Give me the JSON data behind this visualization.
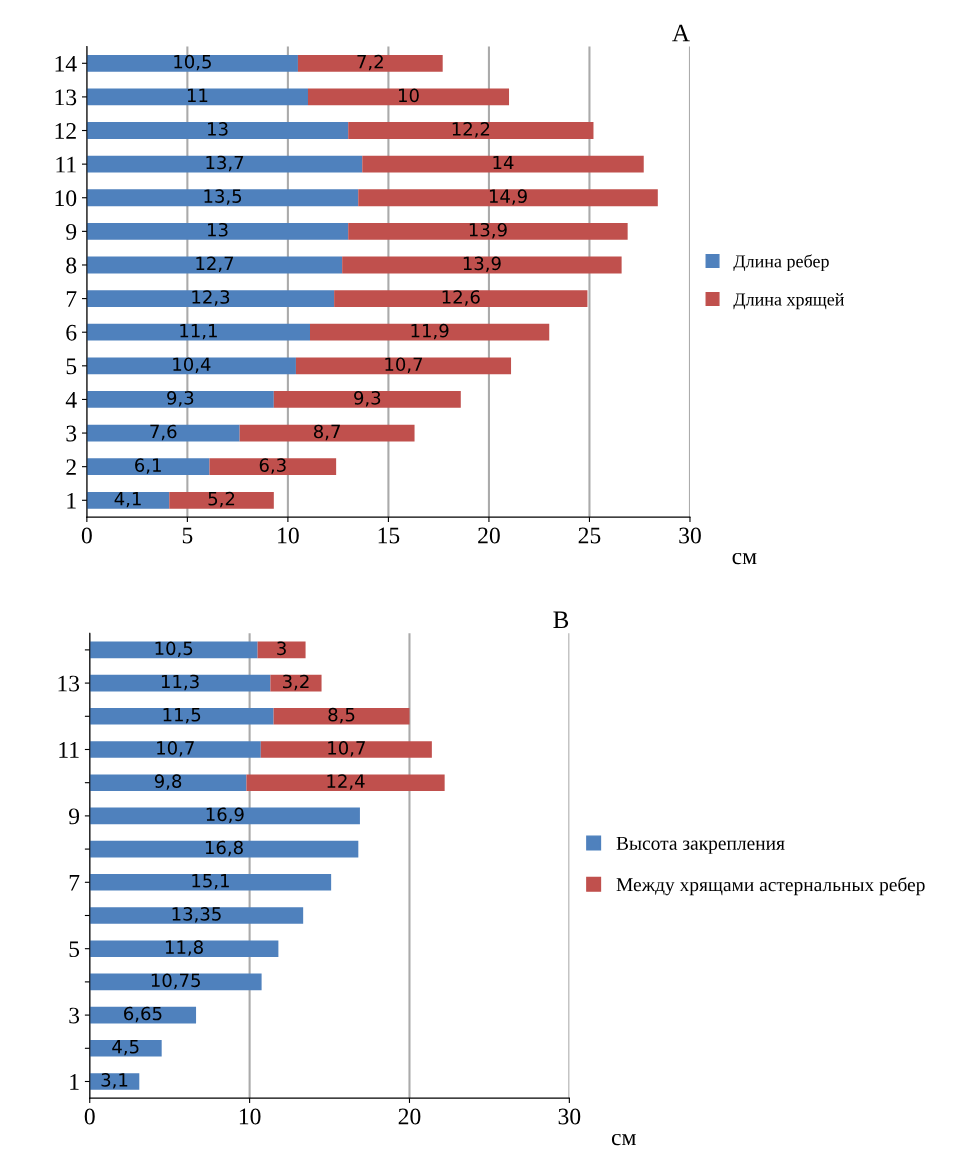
{
  "chart_data": [
    {
      "type": "bar",
      "orientation": "horizontal",
      "stacked": true,
      "title": "A",
      "xlabel": "см",
      "categories": [
        "14",
        "13",
        "12",
        "11",
        "10",
        "9",
        "8",
        "7",
        "6",
        "5",
        "4",
        "3",
        "2",
        "1"
      ],
      "series": [
        {
          "name": "Длина ребер",
          "color": "#4f81bd",
          "values": [
            10.5,
            11,
            13,
            13.7,
            13.5,
            13,
            12.7,
            12.3,
            11.1,
            10.4,
            9.3,
            7.6,
            6.1,
            4.1
          ],
          "value_labels": [
            "10,5",
            "11",
            "13",
            "13,7",
            "13,5",
            "13",
            "12,7",
            "12,3",
            "11,1",
            "10,4",
            "9,3",
            "7,6",
            "6,1",
            "4,1"
          ]
        },
        {
          "name": "Длина хрящей",
          "color": "#c0504d",
          "values": [
            7.2,
            10,
            12.2,
            14,
            14.9,
            13.9,
            13.9,
            12.6,
            11.9,
            10.7,
            9.3,
            8.7,
            6.3,
            5.2
          ],
          "value_labels": [
            "7,2",
            "10",
            "12,2",
            "14",
            "14,9",
            "13,9",
            "13,9",
            "12,6",
            "11,9",
            "10,7",
            "9,3",
            "8,7",
            "6,3",
            "5,2"
          ]
        }
      ],
      "xlim": [
        0,
        30
      ],
      "xticks": [
        0,
        5,
        10,
        15,
        20,
        25,
        30
      ],
      "grid": "x",
      "legend": "right"
    },
    {
      "type": "bar",
      "orientation": "horizontal",
      "stacked": true,
      "title": "B",
      "xlabel": "см",
      "categories": [
        null,
        "13",
        null,
        "11",
        null,
        "9",
        null,
        "7",
        null,
        "5",
        null,
        "3",
        null,
        "1"
      ],
      "series": [
        {
          "name": "Высота закрепления",
          "color": "#4f81bd",
          "values": [
            10.5,
            11.3,
            11.5,
            10.7,
            9.8,
            16.9,
            16.8,
            15.1,
            13.35,
            11.8,
            10.75,
            6.65,
            4.5,
            3.1
          ],
          "value_labels": [
            "10,5",
            "11,3",
            "11,5",
            "10,7",
            "9,8",
            "16,9",
            "16,8",
            "15,1",
            "13,35",
            "11,8",
            "10,75",
            "6,65",
            "4,5",
            "3,1"
          ]
        },
        {
          "name": "Между хрящами астернальных ребер",
          "color": "#c0504d",
          "values": [
            3,
            3.2,
            8.5,
            10.7,
            12.4,
            null,
            null,
            null,
            null,
            null,
            null,
            null,
            null,
            null
          ],
          "value_labels": [
            "3",
            "3,2",
            "8,5",
            "10,7",
            "12,4",
            null,
            null,
            null,
            null,
            null,
            null,
            null,
            null,
            null
          ]
        }
      ],
      "xlim": [
        0,
        30
      ],
      "xticks": [
        0,
        10,
        20,
        30
      ],
      "grid": "x",
      "legend": "right"
    }
  ]
}
